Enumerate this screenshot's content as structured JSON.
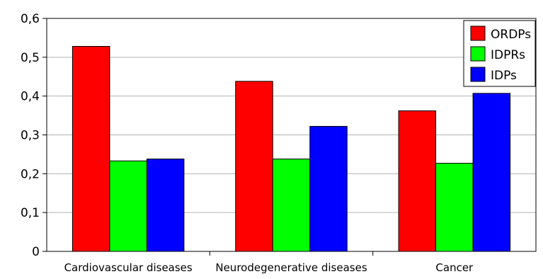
{
  "chart_data": {
    "type": "bar",
    "categories": [
      "Cardiovascular diseases",
      "Neurodegenerative diseases",
      "Cancer"
    ],
    "series": [
      {
        "name": "ORDPs",
        "values": [
          0.528,
          0.438,
          0.362
        ],
        "color": "#ff0000"
      },
      {
        "name": "IDPRs",
        "values": [
          0.233,
          0.238,
          0.227
        ],
        "color": "#00ff00"
      },
      {
        "name": "IDPs",
        "values": [
          0.238,
          0.322,
          0.407
        ],
        "color": "#0000ff"
      }
    ],
    "ylim": [
      0,
      0.6
    ],
    "yticks": [
      0,
      0.1,
      0.2,
      0.3,
      0.4,
      0.5,
      0.6
    ],
    "ytick_labels": [
      "0",
      "0,1",
      "0,2",
      "0,3",
      "0,4",
      "0,5",
      "0,6"
    ],
    "grid": true,
    "legend": "top-right"
  }
}
